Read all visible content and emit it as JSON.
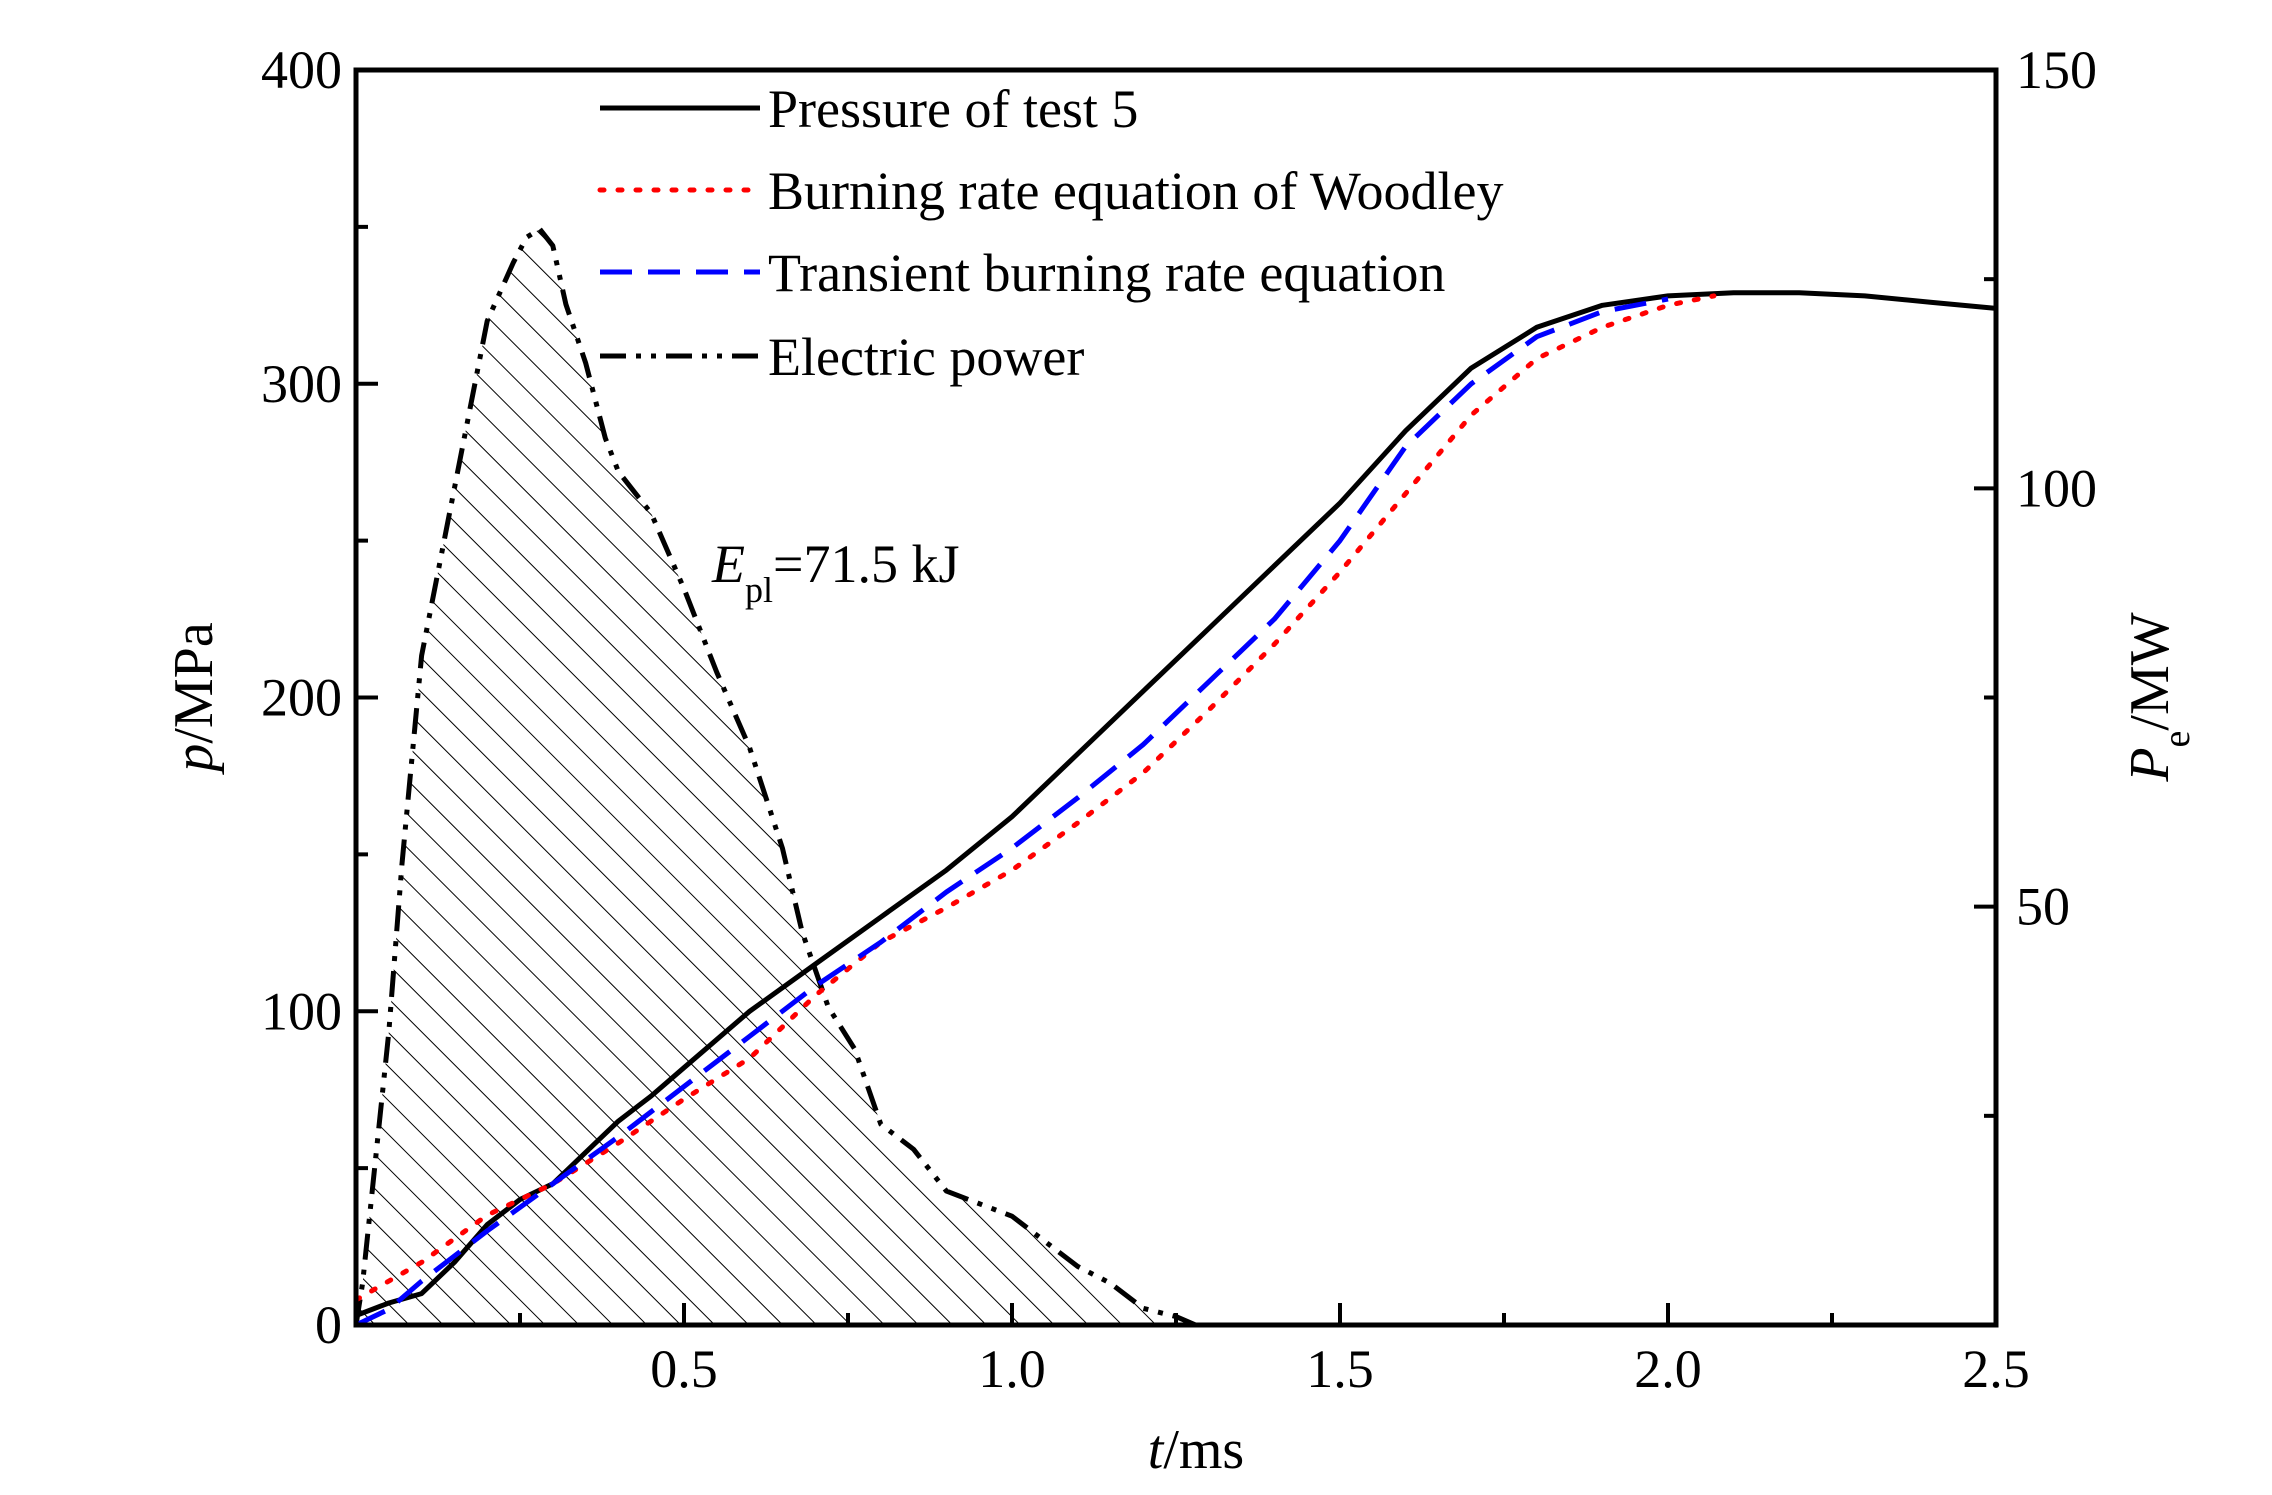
{
  "chart_data": {
    "type": "line",
    "x_axis": {
      "label_var": "t",
      "label_unit": "/ms",
      "range": [
        0,
        2.5
      ],
      "ticks": [
        0.5,
        1.0,
        1.5,
        2.0,
        2.5
      ],
      "tick_labels": [
        "0.5",
        "1.0",
        "1.5",
        "2.0",
        "2.5"
      ]
    },
    "y_axis_left": {
      "label_var": "p",
      "label_unit": "/MPa",
      "range": [
        0,
        400
      ],
      "ticks": [
        0,
        100,
        200,
        300,
        400
      ],
      "tick_labels": [
        "0",
        "100",
        "200",
        "300",
        "400"
      ]
    },
    "y_axis_right": {
      "label_var": "P",
      "label_sub": "e",
      "label_unit": "/MW",
      "range": [
        0,
        150
      ],
      "ticks": [
        50,
        100,
        150
      ],
      "tick_labels": [
        "50",
        "100",
        "150"
      ]
    },
    "grid": false,
    "legend_placement": "top-center",
    "annotation": {
      "var": "E",
      "sub": "pl",
      "text": "=71.5 kJ",
      "x": 0.54,
      "y": 240
    },
    "series": [
      {
        "name": "Pressure of test 5",
        "style": "solid",
        "color": "#000000",
        "axis": "left",
        "x": [
          0,
          0.05,
          0.1,
          0.15,
          0.2,
          0.25,
          0.3,
          0.35,
          0.4,
          0.45,
          0.5,
          0.6,
          0.7,
          0.8,
          0.9,
          1.0,
          1.1,
          1.2,
          1.3,
          1.4,
          1.5,
          1.6,
          1.7,
          1.8,
          1.9,
          2.0,
          2.1,
          2.2,
          2.3,
          2.4,
          2.5
        ],
        "y": [
          3,
          7,
          10,
          20,
          32,
          40,
          45,
          55,
          65,
          73,
          82,
          100,
          115,
          130,
          145,
          162,
          182,
          202,
          222,
          242,
          262,
          285,
          305,
          318,
          325,
          328,
          329,
          329,
          328,
          326,
          324
        ]
      },
      {
        "name": "Burning rate equation of Woodley",
        "style": "dotted",
        "color": "#ff0000",
        "axis": "left",
        "x": [
          0,
          0.1,
          0.2,
          0.3,
          0.4,
          0.5,
          0.6,
          0.7,
          0.8,
          0.9,
          1.0,
          1.1,
          1.2,
          1.3,
          1.4,
          1.5,
          1.6,
          1.7,
          1.8,
          1.9,
          2.0,
          2.07
        ],
        "y": [
          8,
          20,
          35,
          45,
          58,
          72,
          85,
          105,
          122,
          133,
          145,
          160,
          176,
          196,
          217,
          240,
          265,
          290,
          308,
          318,
          325,
          328
        ]
      },
      {
        "name": "Transient burning rate equation",
        "style": "dashed",
        "color": "#0000ff",
        "axis": "left",
        "x": [
          0,
          0.05,
          0.1,
          0.2,
          0.3,
          0.4,
          0.5,
          0.6,
          0.7,
          0.8,
          0.9,
          1.0,
          1.1,
          1.2,
          1.3,
          1.4,
          1.5,
          1.6,
          1.7,
          1.8,
          1.9,
          2.0
        ],
        "y": [
          0,
          5,
          14,
          30,
          45,
          60,
          76,
          92,
          108,
          122,
          138,
          152,
          168,
          185,
          205,
          225,
          250,
          280,
          300,
          315,
          323,
          327
        ]
      },
      {
        "name": "Electric power",
        "style": "dash-dot-dot",
        "color": "#000000",
        "axis": "right",
        "filled_hatched": true,
        "x": [
          0,
          0.01,
          0.03,
          0.05,
          0.07,
          0.1,
          0.15,
          0.2,
          0.24,
          0.26,
          0.28,
          0.3,
          0.32,
          0.35,
          0.38,
          0.4,
          0.45,
          0.5,
          0.55,
          0.6,
          0.65,
          0.68,
          0.72,
          0.76,
          0.8,
          0.85,
          0.9,
          1.0,
          1.05,
          1.1,
          1.15,
          1.2,
          1.25,
          1.28
        ],
        "y": [
          0,
          5,
          20,
          35,
          55,
          80,
          100,
          120,
          127,
          130,
          131,
          129,
          122,
          115,
          106,
          102,
          97,
          88,
          78,
          69,
          57,
          47,
          38,
          33,
          24,
          21,
          16,
          13,
          10,
          7,
          5,
          2,
          1,
          0
        ]
      }
    ]
  }
}
